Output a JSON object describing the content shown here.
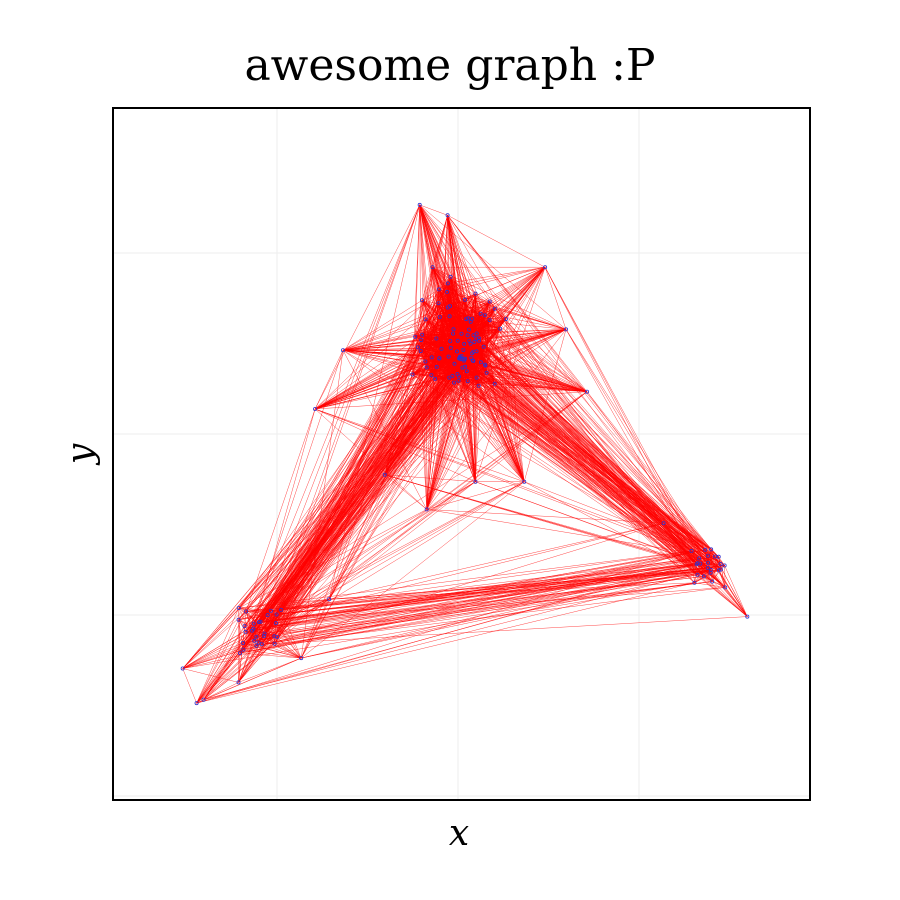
{
  "figure": {
    "title": "awesome graph :P",
    "xlabel": "x",
    "ylabel": "y"
  },
  "style": {
    "edge_color": "#ff0000",
    "node_color": "#3333cc",
    "grid_color": "#eeeeee",
    "frame_color": "#000000"
  },
  "chart_data": {
    "type": "scatter",
    "description_kind": "network-graph",
    "xlim": [
      0,
      1
    ],
    "ylim": [
      0,
      1
    ],
    "grid": true,
    "clusters": [
      {
        "id": "top",
        "center": [
          0.49,
          0.66
        ],
        "spread": [
          0.07,
          0.08
        ],
        "count": 95
      },
      {
        "id": "right",
        "center": [
          0.85,
          0.34
        ],
        "spread": [
          0.03,
          0.025
        ],
        "count": 22
      },
      {
        "id": "left",
        "center": [
          0.22,
          0.25
        ],
        "spread": [
          0.04,
          0.045
        ],
        "count": 28
      }
    ],
    "outer_nodes": [
      [
        0.44,
        0.86
      ],
      [
        0.48,
        0.845
      ],
      [
        0.62,
        0.77
      ],
      [
        0.65,
        0.68
      ],
      [
        0.33,
        0.65
      ],
      [
        0.29,
        0.565
      ],
      [
        0.52,
        0.46
      ],
      [
        0.45,
        0.42
      ],
      [
        0.59,
        0.46
      ],
      [
        0.79,
        0.4
      ],
      [
        0.83,
        0.36
      ],
      [
        0.91,
        0.265
      ],
      [
        0.27,
        0.205
      ],
      [
        0.1,
        0.19
      ],
      [
        0.12,
        0.14
      ],
      [
        0.13,
        0.145
      ],
      [
        0.18,
        0.17
      ],
      [
        0.31,
        0.29
      ],
      [
        0.68,
        0.59
      ],
      [
        0.39,
        0.47
      ]
    ],
    "edge_density": {
      "within": 0.35,
      "between": 0.08
    }
  }
}
